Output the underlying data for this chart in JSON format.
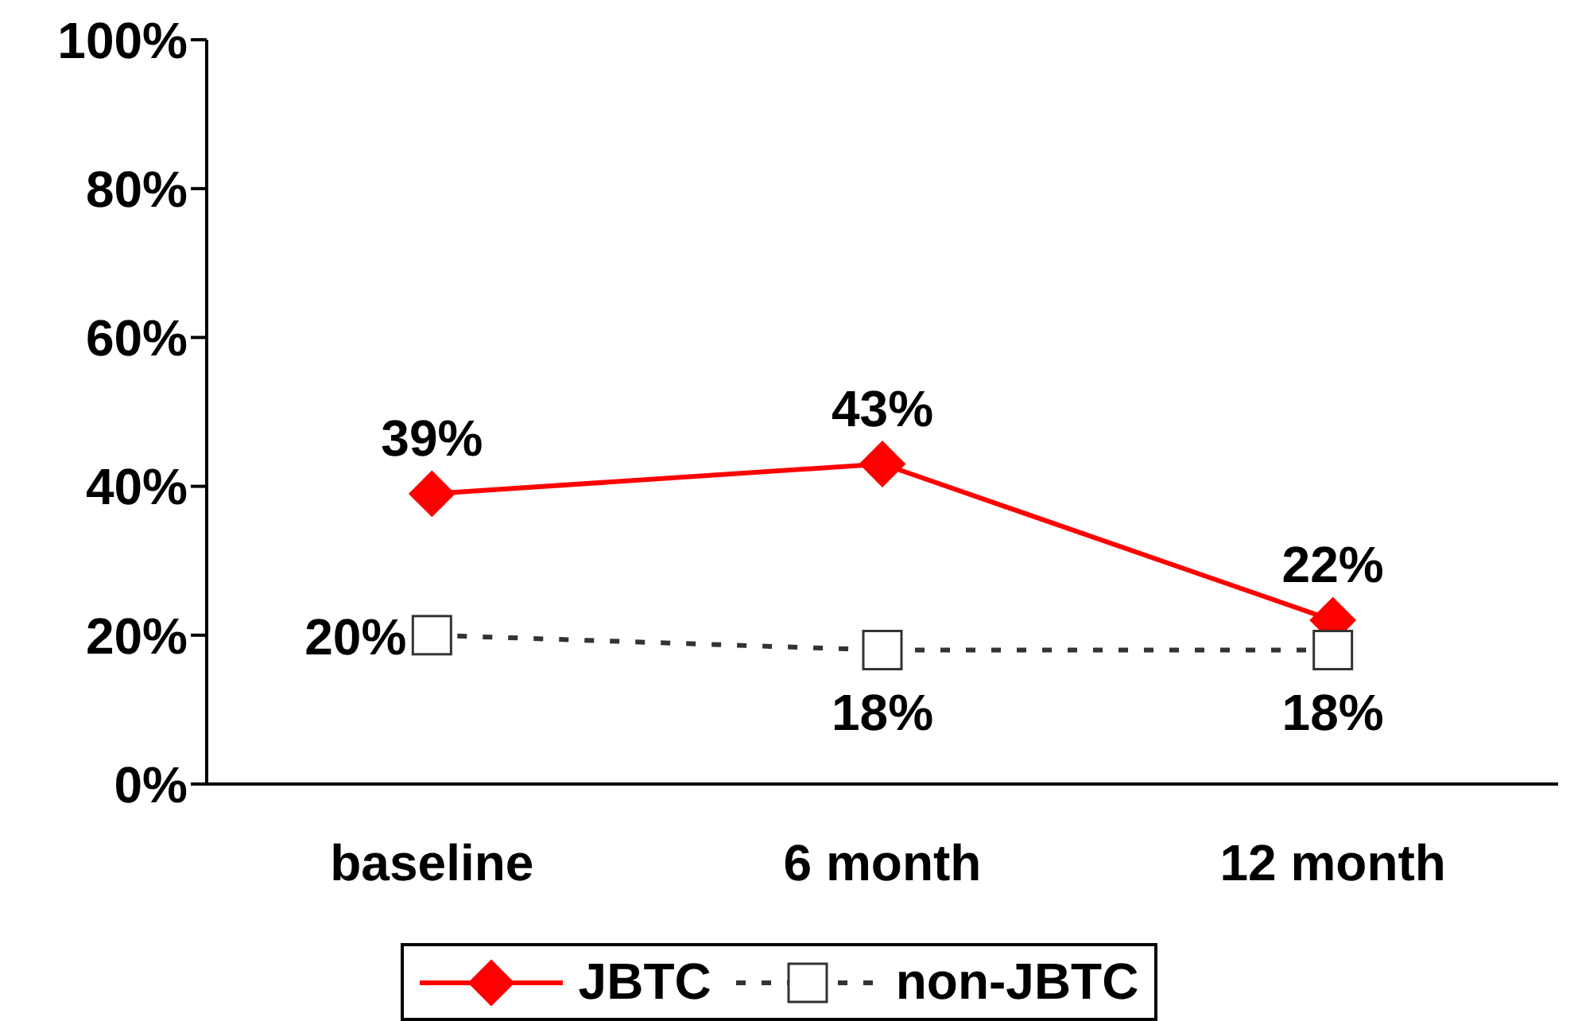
{
  "chart_data": {
    "type": "line",
    "categories": [
      "baseline",
      "6 month",
      "12 month"
    ],
    "series": [
      {
        "name": "JBTC",
        "color": "#ff0000",
        "values": [
          39,
          43,
          22
        ],
        "value_labels": [
          "39%",
          "43%",
          "22%"
        ],
        "marker": "diamond",
        "line_style": "solid"
      },
      {
        "name": "non-JBTC",
        "color": "#333333",
        "values": [
          20,
          18,
          18
        ],
        "value_labels": [
          "20%",
          "18%",
          "18%"
        ],
        "marker": "square",
        "line_style": "dashed"
      }
    ],
    "ylim": [
      0,
      100
    ],
    "yticks": [
      {
        "value": 0,
        "label": "0%"
      },
      {
        "value": 20,
        "label": "20%"
      },
      {
        "value": 40,
        "label": "40%"
      },
      {
        "value": 60,
        "label": "60%"
      },
      {
        "value": 80,
        "label": "80%"
      },
      {
        "value": 100,
        "label": "100%"
      }
    ],
    "grid": false,
    "legend": "bottom"
  }
}
